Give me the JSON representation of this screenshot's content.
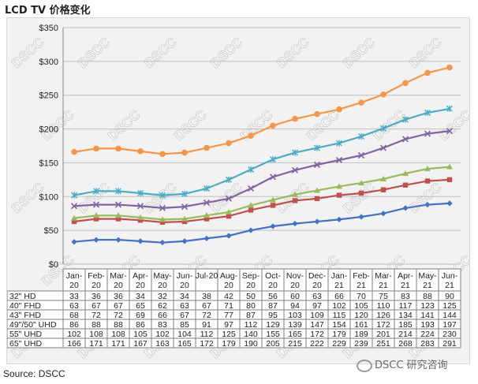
{
  "header": {
    "title": "LCD TV  价格变化"
  },
  "footer": {
    "source": "Source: DSCC",
    "brand": "DSCC 研究咨询"
  },
  "watermark": "DSCC",
  "chart_data": {
    "type": "line",
    "title": "",
    "xlabel": "",
    "ylabel": "",
    "ylim": [
      0,
      350
    ],
    "yticks": [
      "$0",
      "$50",
      "$100",
      "$150",
      "$200",
      "$250",
      "$300",
      "$350"
    ],
    "categories": [
      [
        "Jan-",
        "20"
      ],
      [
        "Feb-",
        "20"
      ],
      [
        "Mar-",
        "20"
      ],
      [
        "Apr-",
        "20"
      ],
      [
        "May-",
        "20"
      ],
      [
        "Jun-",
        "20"
      ],
      [
        "Jul-20",
        ""
      ],
      [
        "Aug-",
        "20"
      ],
      [
        "Sep-",
        "20"
      ],
      [
        "Oct-",
        "20"
      ],
      [
        "Nov-",
        "20"
      ],
      [
        "Dec-",
        "20"
      ],
      [
        "Jan-",
        "21"
      ],
      [
        "Feb-",
        "21"
      ],
      [
        "Mar-",
        "21"
      ],
      [
        "Apr-",
        "21"
      ],
      [
        "May-",
        "21"
      ],
      [
        "Jun-",
        "21"
      ]
    ],
    "grid": true,
    "legend": "data table below chart",
    "series": [
      {
        "name": "32\" HD",
        "color": "#4472c4",
        "marker": "diamond",
        "values": [
          33,
          36,
          36,
          34,
          32,
          34,
          38,
          42,
          50,
          56,
          60,
          63,
          66,
          70,
          75,
          83,
          88,
          90
        ]
      },
      {
        "name": "40\" FHD",
        "color": "#c0504d",
        "marker": "square",
        "values": [
          63,
          67,
          67,
          65,
          62,
          63,
          67,
          71,
          80,
          87,
          94,
          97,
          102,
          105,
          110,
          117,
          123,
          125
        ]
      },
      {
        "name": "43\" FHD",
        "color": "#9bbb59",
        "marker": "triangle",
        "values": [
          68,
          72,
          72,
          69,
          66,
          67,
          72,
          77,
          87,
          95,
          103,
          109,
          115,
          120,
          126,
          134,
          141,
          144
        ]
      },
      {
        "name": "49\"/50\" UHD",
        "color": "#8064a2",
        "marker": "x",
        "values": [
          86,
          88,
          88,
          86,
          83,
          85,
          91,
          97,
          112,
          129,
          139,
          147,
          154,
          161,
          172,
          185,
          193,
          197
        ]
      },
      {
        "name": "55\" UHD",
        "color": "#4bacc6",
        "marker": "star",
        "values": [
          102,
          108,
          108,
          105,
          102,
          104,
          112,
          125,
          140,
          155,
          165,
          172,
          179,
          189,
          201,
          214,
          224,
          230
        ]
      },
      {
        "name": "65\" UHD",
        "color": "#f79646",
        "marker": "circle",
        "values": [
          166,
          171,
          171,
          167,
          163,
          165,
          172,
          179,
          190,
          205,
          215,
          222,
          229,
          239,
          251,
          268,
          283,
          291
        ]
      }
    ]
  }
}
